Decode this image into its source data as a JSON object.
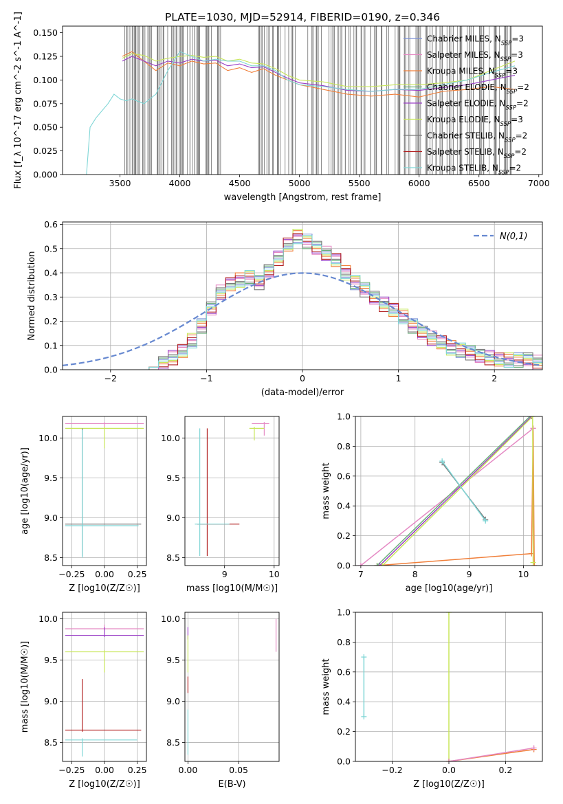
{
  "figure_title": "PLATE=1030, MJD=52914, FIBERID=0190, z=0.346",
  "series_styles": [
    {
      "name": "Chabrier MILES",
      "color": "#7a8fd6"
    },
    {
      "name": "Salpeter MILES",
      "color": "#e58ac4"
    },
    {
      "name": "Kroupa MILES",
      "color": "#f07f3a"
    },
    {
      "name": "Chabrier ELODIE",
      "color": "#6aaf7a"
    },
    {
      "name": "Salpeter ELODIE",
      "color": "#9a3fc6"
    },
    {
      "name": "Kroupa ELODIE",
      "color": "#c8e65a"
    },
    {
      "name": "Chabrier STELIB",
      "color": "#777777"
    },
    {
      "name": "Salpeter STELIB",
      "color": "#b22222"
    },
    {
      "name": "Kroupa STELIB",
      "color": "#7fd6d6"
    }
  ],
  "colors": {
    "data_gray": "#808080",
    "normal_curve": "#6688d0",
    "grid": "#b0b0b0"
  },
  "chart_data": [
    {
      "id": "spectrum",
      "type": "line",
      "title": "PLATE=1030, MJD=52914, FIBERID=0190, z=0.346",
      "xlabel": "wavelength [Angstrom, rest frame]",
      "ylabel": "Flux [f_λ 10^-17 erg cm^-2 s^-1 A^-1]",
      "xlim": [
        3020,
        7030
      ],
      "ylim": [
        0,
        0.157
      ],
      "xticks": [
        3500,
        4000,
        4500,
        5000,
        5500,
        6000,
        6500,
        7000
      ],
      "yticks": [
        0.0,
        0.025,
        0.05,
        0.075,
        0.1,
        0.125,
        0.15
      ],
      "legend_position": "upper-right",
      "legend": [
        {
          "label": "Chabrier MILES, N",
          "sub": "SSP",
          "suffix": "=3"
        },
        {
          "label": "Salpeter MILES, N",
          "sub": "SSP",
          "suffix": "=3"
        },
        {
          "label": "Kroupa MILES, N",
          "sub": "SSP",
          "suffix": "=3"
        },
        {
          "label": "Chabrier ELODIE, N",
          "sub": "SSP",
          "suffix": "=2"
        },
        {
          "label": "Salpeter ELODIE, N",
          "sub": "SSP",
          "suffix": "=2"
        },
        {
          "label": "Kroupa ELODIE, N",
          "sub": "SSP",
          "suffix": "=3"
        },
        {
          "label": "Chabrier STELIB, N",
          "sub": "SSP",
          "suffix": "=2"
        },
        {
          "label": "Salpeter STELIB, N",
          "sub": "SSP",
          "suffix": "=2"
        },
        {
          "label": "Kroupa STELIB, N",
          "sub": "SSP",
          "suffix": "=2"
        }
      ],
      "data_noise_spikes": [
        {
          "x": 3540,
          "y": 0.0
        },
        {
          "x": 3580,
          "y": 0.0
        },
        {
          "x": 3640,
          "y": 0.0
        },
        {
          "x": 3700,
          "y": 0.0
        },
        {
          "x": 3770,
          "y": 0.0
        },
        {
          "x": 3840,
          "y": 0.0
        },
        {
          "x": 3910,
          "y": 0.0
        },
        {
          "x": 3990,
          "y": 0.0
        },
        {
          "x": 4060,
          "y": 0.0
        },
        {
          "x": 4130,
          "y": 0.0
        },
        {
          "x": 4200,
          "y": 0.0
        },
        {
          "x": 4280,
          "y": 0.0
        },
        {
          "x": 4640,
          "y": 0.0
        },
        {
          "x": 4720,
          "y": 0.0
        },
        {
          "x": 4810,
          "y": 0.0
        },
        {
          "x": 4900,
          "y": 0.0
        },
        {
          "x": 5050,
          "y": 0.0
        },
        {
          "x": 5140,
          "y": 0.0
        },
        {
          "x": 5230,
          "y": 0.0
        },
        {
          "x": 5320,
          "y": 0.0
        },
        {
          "x": 5410,
          "y": 0.0
        },
        {
          "x": 5500,
          "y": 0.0
        },
        {
          "x": 5590,
          "y": 0.0
        },
        {
          "x": 5680,
          "y": 0.0
        },
        {
          "x": 5770,
          "y": 0.0
        },
        {
          "x": 5860,
          "y": 0.0
        },
        {
          "x": 5950,
          "y": 0.0
        },
        {
          "x": 6040,
          "y": 0.0
        },
        {
          "x": 6130,
          "y": 0.0
        },
        {
          "x": 6220,
          "y": 0.0
        },
        {
          "x": 6310,
          "y": 0.0
        },
        {
          "x": 6400,
          "y": 0.0
        },
        {
          "x": 6490,
          "y": 0.0
        },
        {
          "x": 6580,
          "y": 0.0
        },
        {
          "x": 6670,
          "y": 0.0
        },
        {
          "x": 6760,
          "y": 0.0
        }
      ],
      "model_lines": [
        {
          "series": "Kroupa MILES",
          "x": [
            3520,
            3600,
            3700,
            3800,
            3900,
            4000,
            4100,
            4200,
            4300,
            4400,
            4500,
            4600,
            4700,
            4800,
            4900,
            5000,
            5200,
            5400,
            5600,
            5800,
            6000,
            6200,
            6400,
            6600,
            6800
          ],
          "y": [
            0.125,
            0.13,
            0.12,
            0.11,
            0.118,
            0.115,
            0.12,
            0.117,
            0.118,
            0.11,
            0.113,
            0.108,
            0.112,
            0.105,
            0.1,
            0.095,
            0.09,
            0.085,
            0.083,
            0.085,
            0.082,
            0.088,
            0.09,
            0.093,
            0.09
          ]
        },
        {
          "series": "Kroupa ELODIE",
          "x": [
            3520,
            3600,
            3700,
            3800,
            3900,
            4000,
            4100,
            4200,
            4300,
            4400,
            4500,
            4600,
            4700,
            4800,
            4900,
            5000,
            5200,
            5400,
            5600,
            5800,
            6000,
            6200,
            6400,
            6600,
            6800
          ],
          "y": [
            0.123,
            0.128,
            0.126,
            0.12,
            0.123,
            0.125,
            0.126,
            0.124,
            0.125,
            0.12,
            0.122,
            0.118,
            0.117,
            0.112,
            0.105,
            0.1,
            0.098,
            0.093,
            0.093,
            0.095,
            0.095,
            0.097,
            0.1,
            0.11,
            0.12
          ]
        },
        {
          "series": "Salpeter ELODIE",
          "x": [
            3520,
            3600,
            3700,
            3800,
            3900,
            4000,
            4100,
            4200,
            4300,
            4400,
            4500,
            4600,
            4700,
            4800,
            4900,
            5000,
            5200,
            5400,
            5600,
            5800,
            6000,
            6200,
            6400,
            6600,
            6800
          ],
          "y": [
            0.12,
            0.125,
            0.12,
            0.115,
            0.12,
            0.118,
            0.122,
            0.12,
            0.121,
            0.115,
            0.117,
            0.113,
            0.114,
            0.108,
            0.102,
            0.097,
            0.094,
            0.089,
            0.088,
            0.09,
            0.089,
            0.092,
            0.095,
            0.1,
            0.105
          ]
        },
        {
          "series": "Kroupa STELIB",
          "x": [
            3220,
            3250,
            3300,
            3400,
            3450,
            3500,
            3550,
            3600,
            3700,
            3800,
            3900,
            4000,
            4100,
            4200,
            4300,
            4400,
            4500,
            4600,
            4700,
            4800,
            4900,
            5000,
            5200,
            5400,
            5600,
            5800,
            6000,
            6200,
            6400,
            6600,
            6800
          ],
          "y": [
            0.0,
            0.05,
            0.06,
            0.075,
            0.085,
            0.08,
            0.078,
            0.08,
            0.075,
            0.085,
            0.11,
            0.13,
            0.125,
            0.12,
            0.122,
            0.12,
            0.12,
            0.115,
            0.115,
            0.11,
            0.1,
            0.095,
            0.093,
            0.09,
            0.088,
            0.09,
            0.09,
            0.095,
            0.1,
            0.108,
            0.115
          ]
        }
      ]
    },
    {
      "id": "residual_hist",
      "type": "histogram",
      "xlabel": "(data-model)/error",
      "ylabel": "Normed distribution",
      "xlim": [
        -2.5,
        2.5
      ],
      "ylim": [
        0,
        0.61
      ],
      "xticks": [
        -2,
        -1,
        0,
        1,
        2
      ],
      "yticks": [
        0.0,
        0.1,
        0.2,
        0.3,
        0.4,
        0.5,
        0.6
      ],
      "legend_position": "upper-right",
      "normal_label": "N(0,1)",
      "bin_start": -1.7,
      "bin_width": 0.1,
      "reference_heights": [
        0.0,
        0.01,
        0.03,
        0.05,
        0.08,
        0.12,
        0.18,
        0.25,
        0.32,
        0.35,
        0.37,
        0.38,
        0.36,
        0.41,
        0.46,
        0.52,
        0.55,
        0.53,
        0.5,
        0.48,
        0.45,
        0.4,
        0.36,
        0.33,
        0.3,
        0.27,
        0.25,
        0.22,
        0.18,
        0.15,
        0.13,
        0.11,
        0.09,
        0.08,
        0.07,
        0.06,
        0.05,
        0.045,
        0.04,
        0.04,
        0.04,
        0.03
      ]
    },
    {
      "id": "age_vs_Z",
      "type": "errorbar",
      "xlabel": "Z [log10(Z/Z☉)]",
      "ylabel": "age [log10(age/yr)]",
      "xlim": [
        -0.32,
        0.32
      ],
      "ylim": [
        8.4,
        10.27
      ],
      "xticks": [
        -0.25,
        0.0,
        0.25
      ],
      "yticks": [
        8.5,
        9.0,
        9.5,
        10.0
      ],
      "points": [
        {
          "series": "Salpeter MILES",
          "x": 0.0,
          "y": 10.18,
          "xerr": [
            0.3,
            0.3
          ],
          "yerr": [
            0.05,
            0.02
          ]
        },
        {
          "series": "Kroupa ELODIE",
          "x": 0.0,
          "y": 10.12,
          "xerr": [
            0.3,
            0.3
          ],
          "yerr": [
            0.25,
            0.02
          ]
        },
        {
          "series": "Chabrier STELIB",
          "x": -0.17,
          "y": 8.92,
          "xerr": [
            0.13,
            0.45
          ],
          "yerr": [
            0.4,
            1.2
          ]
        },
        {
          "series": "Kroupa STELIB",
          "x": -0.17,
          "y": 8.9,
          "xerr": [
            0.13,
            0.43
          ],
          "yerr": [
            0.4,
            1.2
          ]
        }
      ]
    },
    {
      "id": "age_vs_mass",
      "type": "errorbar",
      "xlabel": "mass [log10(M/M☉)]",
      "ylabel": "",
      "xlim": [
        8.2,
        10.1
      ],
      "ylim": [
        8.4,
        10.27
      ],
      "xticks": [
        8,
        9,
        10
      ],
      "yticks": [
        8.5,
        9.0,
        9.5,
        10.0
      ],
      "points": [
        {
          "series": "Salpeter MILES",
          "x": 9.8,
          "y": 10.18,
          "xerr": [
            0.25,
            0.1
          ],
          "yerr": [
            0.15,
            0.02
          ]
        },
        {
          "series": "Kroupa ELODIE",
          "x": 9.6,
          "y": 10.12,
          "xerr": [
            0.1,
            0.2
          ],
          "yerr": [
            0.15,
            0.02
          ]
        },
        {
          "series": "Salpeter STELIB",
          "x": 8.65,
          "y": 8.92,
          "xerr": [
            0.2,
            0.65
          ],
          "yerr": [
            0.4,
            1.2
          ]
        },
        {
          "series": "Kroupa STELIB",
          "x": 8.5,
          "y": 8.92,
          "xerr": [
            0.1,
            0.6
          ],
          "yerr": [
            0.4,
            1.2
          ]
        }
      ]
    },
    {
      "id": "weight_vs_age",
      "type": "line",
      "xlabel": "age [log10(age/yr)]",
      "ylabel": "mass weight",
      "xlim": [
        6.9,
        10.35
      ],
      "ylim": [
        0,
        1.0
      ],
      "xticks": [
        7,
        8,
        9,
        10
      ],
      "yticks": [
        0.0,
        0.2,
        0.4,
        0.6,
        0.8,
        1.0
      ],
      "lines": [
        {
          "series": "Kroupa MILES",
          "x": [
            7.3,
            10.15,
            10.18,
            10.2
          ],
          "y": [
            0.0,
            0.08,
            0.92,
            0.0
          ]
        },
        {
          "series": "Salpeter MILES",
          "x": [
            7.0,
            10.18
          ],
          "y": [
            0.0,
            0.92
          ]
        },
        {
          "series": "Chabrier ELODIE",
          "x": [
            7.3,
            10.12
          ],
          "y": [
            0.0,
            1.0
          ]
        },
        {
          "series": "Salpeter ELODIE",
          "x": [
            7.35,
            10.15
          ],
          "y": [
            0.0,
            1.0
          ]
        },
        {
          "series": "Kroupa ELODIE",
          "x": [
            7.4,
            10.17,
            10.18
          ],
          "y": [
            0.0,
            1.0,
            0.02
          ]
        },
        {
          "series": "Chabrier STELIB",
          "x": [
            8.5,
            9.3
          ],
          "y": [
            0.69,
            0.31
          ]
        },
        {
          "series": "Kroupa STELIB",
          "x": [
            8.5,
            9.3
          ],
          "y": [
            0.7,
            0.3
          ]
        }
      ]
    },
    {
      "id": "mass_vs_Z",
      "type": "errorbar",
      "xlabel": "Z [log10(Z/Z☉)]",
      "ylabel": "mass [log10(M/M☉)]",
      "xlim": [
        -0.32,
        0.32
      ],
      "ylim": [
        8.27,
        10.08
      ],
      "xticks": [
        -0.25,
        0.0,
        0.25
      ],
      "yticks": [
        8.5,
        9.0,
        9.5,
        10.0
      ],
      "points": [
        {
          "series": "Salpeter MILES",
          "x": 0.0,
          "y": 9.88,
          "xerr": [
            0.3,
            0.3
          ],
          "yerr": [
            0.02,
            0.05
          ]
        },
        {
          "series": "Salpeter ELODIE",
          "x": 0.0,
          "y": 9.8,
          "xerr": [
            0.3,
            0.3
          ],
          "yerr": [
            0.02,
            0.1
          ]
        },
        {
          "series": "Kroupa ELODIE",
          "x": 0.0,
          "y": 9.6,
          "xerr": [
            0.3,
            0.3
          ],
          "yerr": [
            0.25,
            0.02
          ]
        },
        {
          "series": "Salpeter STELIB",
          "x": -0.17,
          "y": 8.65,
          "xerr": [
            0.13,
            0.45
          ],
          "yerr": [
            0.02,
            0.62
          ]
        },
        {
          "series": "Kroupa STELIB",
          "x": -0.17,
          "y": 8.53,
          "xerr": [
            0.13,
            0.42
          ],
          "yerr": [
            0.2,
            0.02
          ]
        }
      ]
    },
    {
      "id": "mass_vs_EBV",
      "type": "errorbar",
      "xlabel": "E(B-V)",
      "ylabel": "",
      "xlim": [
        -0.003,
        0.09
      ],
      "ylim": [
        8.27,
        10.08
      ],
      "xticks": [
        0.0,
        0.05
      ],
      "yticks": [
        8.5,
        9.0,
        9.5,
        10.0
      ],
      "points": [
        {
          "series": "Salpeter ELODIE",
          "x": 0.0,
          "y": 9.8,
          "xerr": [
            0,
            0
          ],
          "yerr": [
            0.05,
            0.1
          ]
        },
        {
          "series": "Kroupa ELODIE",
          "x": 0.0,
          "y": 9.6,
          "xerr": [
            0,
            0
          ],
          "yerr": [
            0.25,
            0.2
          ]
        },
        {
          "series": "Salpeter STELIB",
          "x": 0.0,
          "y": 9.2,
          "xerr": [
            0,
            0
          ],
          "yerr": [
            0.1,
            0.1
          ]
        },
        {
          "series": "Kroupa STELIB",
          "x": 0.0,
          "y": 8.6,
          "xerr": [
            0,
            0
          ],
          "yerr": [
            0.25,
            0.3
          ]
        },
        {
          "series": "Salpeter MILES",
          "x": 0.087,
          "y": 9.8,
          "xerr": [
            0,
            0
          ],
          "yerr": [
            0.2,
            0.2
          ]
        }
      ]
    },
    {
      "id": "weight_vs_Z",
      "type": "line",
      "xlabel": "Z [log10(Z/Z☉)]",
      "ylabel": "mass weight",
      "xlim": [
        -0.33,
        0.33
      ],
      "ylim": [
        0,
        1.0
      ],
      "xticks": [
        -0.2,
        0.0,
        0.2
      ],
      "yticks": [
        0.0,
        0.2,
        0.4,
        0.6,
        0.8,
        1.0
      ],
      "lines": [
        {
          "series": "Kroupa STELIB",
          "x": [
            -0.3,
            -0.3
          ],
          "y": [
            0.3,
            0.7
          ]
        },
        {
          "series": "Kroupa ELODIE",
          "x": [
            0.0,
            0.0
          ],
          "y": [
            1.0,
            0.0
          ]
        },
        {
          "series": "Kroupa MILES",
          "x": [
            0.0,
            0.3
          ],
          "y": [
            0.0,
            0.08
          ]
        },
        {
          "series": "Salpeter MILES",
          "x": [
            0.0,
            0.3
          ],
          "y": [
            0.0,
            0.09
          ]
        }
      ]
    }
  ]
}
